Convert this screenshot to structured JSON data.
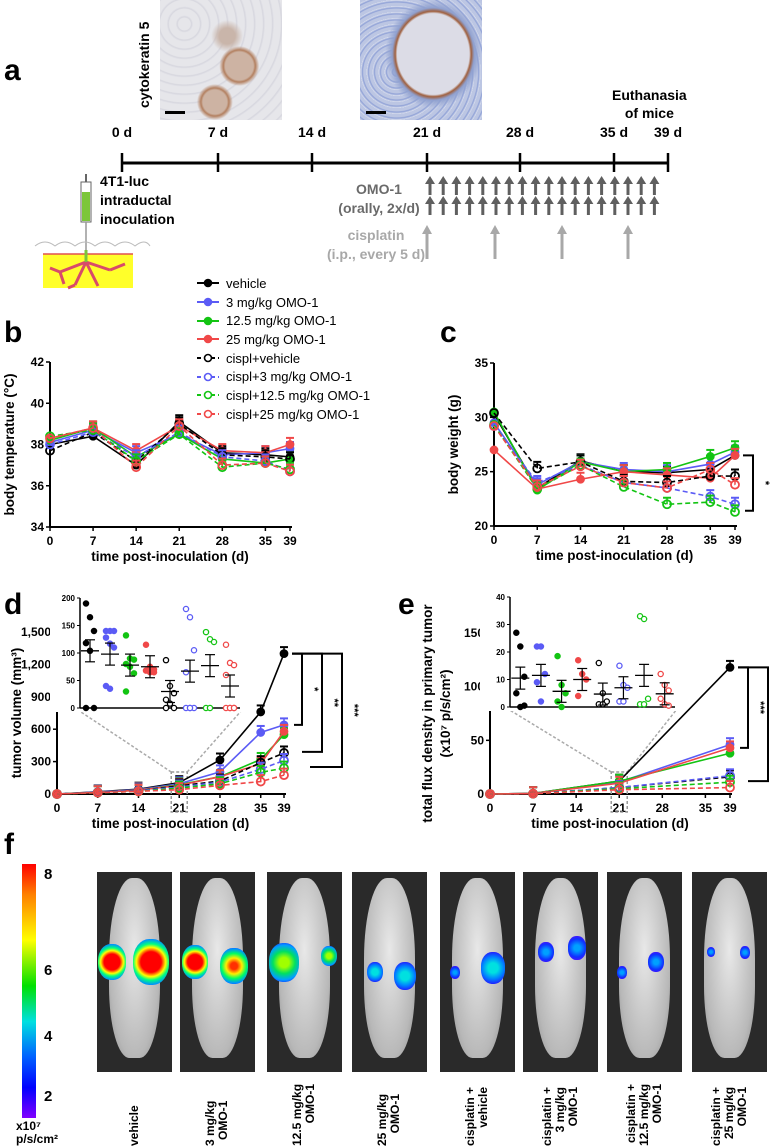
{
  "panel_labels": [
    "a",
    "b",
    "c",
    "d",
    "e",
    "f"
  ],
  "timeline": {
    "histology_label": "cytokeratin 5",
    "days": [
      "0 d",
      "7 d",
      "14 d",
      "21 d",
      "28 d",
      "35 d",
      "39 d"
    ],
    "euthanasia": [
      "Euthanasia",
      "of mice"
    ],
    "inoculation": [
      "4T1-luc",
      "intraductal",
      "inoculation"
    ],
    "omo": [
      "OMO-1",
      "(orally, 2x/d)"
    ],
    "cisplatin": [
      "cisplatin",
      "(i.p., every 5 d)"
    ]
  },
  "colors": {
    "vehicle": "#000000",
    "blue": "#5b5bf5",
    "green": "#13c413",
    "red": "#f04848",
    "omo_arrow": "#5f5f5f",
    "cis_arrow": "#a8a8a8",
    "gland": "#ffff2a"
  },
  "legend": [
    "vehicle",
    "3 mg/kg OMO-1",
    "12.5 mg/kg OMO-1",
    "25 mg/kg OMO-1",
    "cispl+vehicle",
    "cispl+3 mg/kg OMO-1",
    "cispl+12.5 mg/kg OMO-1",
    "cispl+25 mg/kg OMO-1"
  ],
  "chart_data": [
    {
      "id": "b",
      "type": "line",
      "ylabel": "body temperature (°C)",
      "xlabel": "time post-inoculation (d)",
      "x": [
        0,
        7,
        14,
        21,
        28,
        35,
        39
      ],
      "xticks": [
        "0",
        "7",
        "14",
        "21",
        "28",
        "35",
        "39"
      ],
      "ylim": [
        34,
        42
      ],
      "yticks": [
        "34",
        "36",
        "38",
        "40",
        "42"
      ],
      "series": [
        {
          "name": "vehicle",
          "values": [
            38.0,
            38.4,
            37.0,
            39.1,
            37.6,
            37.5,
            37.4
          ]
        },
        {
          "name": "3 mg/kg OMO-1",
          "values": [
            38.1,
            38.7,
            37.6,
            38.5,
            37.5,
            37.6,
            37.8
          ]
        },
        {
          "name": "12.5 mg/kg OMO-1",
          "values": [
            38.2,
            38.8,
            37.4,
            38.5,
            37.3,
            37.1,
            37.3
          ]
        },
        {
          "name": "25 mg/kg OMO-1",
          "values": [
            38.3,
            38.8,
            37.7,
            38.9,
            37.7,
            37.6,
            38.0
          ]
        },
        {
          "name": "cispl+vehicle",
          "values": [
            37.7,
            38.6,
            37.2,
            39.0,
            37.5,
            37.4,
            37.3
          ]
        },
        {
          "name": "cispl+3 mg/kg OMO-1",
          "values": [
            38.0,
            38.6,
            37.4,
            38.6,
            37.4,
            37.2,
            36.7
          ]
        },
        {
          "name": "cispl+12.5 mg/kg OMO-1",
          "values": [
            38.4,
            38.7,
            37.2,
            38.5,
            36.9,
            37.1,
            36.8
          ]
        },
        {
          "name": "cispl+25 mg/kg OMO-1",
          "values": [
            38.3,
            38.8,
            36.9,
            38.9,
            37.0,
            37.1,
            36.7
          ]
        }
      ]
    },
    {
      "id": "c",
      "type": "line",
      "ylabel": "body weight (g)",
      "xlabel": "time post-inoculation (d)",
      "x": [
        0,
        7,
        14,
        21,
        28,
        35,
        39
      ],
      "xticks": [
        "0",
        "7",
        "14",
        "21",
        "28",
        "35",
        "39"
      ],
      "ylim": [
        20,
        35
      ],
      "yticks": [
        "20",
        "25",
        "30",
        "35"
      ],
      "significance": [
        "*"
      ],
      "series": [
        {
          "name": "vehicle",
          "values": [
            30.3,
            23.5,
            26.0,
            25.0,
            24.9,
            25.2,
            26.5
          ]
        },
        {
          "name": "3 mg/kg OMO-1",
          "values": [
            29.5,
            23.8,
            25.9,
            25.2,
            25.0,
            25.7,
            26.8
          ]
        },
        {
          "name": "12.5 mg/kg OMO-1",
          "values": [
            30.5,
            23.3,
            25.9,
            25.0,
            25.2,
            26.4,
            27.2
          ]
        },
        {
          "name": "25 mg/kg OMO-1",
          "values": [
            27.0,
            23.4,
            24.3,
            25.0,
            24.7,
            24.4,
            26.5
          ]
        },
        {
          "name": "cispl+vehicle",
          "values": [
            30.4,
            25.3,
            25.9,
            24.1,
            24.0,
            24.6,
            24.6
          ]
        },
        {
          "name": "cispl+3 mg/kg OMO-1",
          "values": [
            29.2,
            24.0,
            25.6,
            24.0,
            23.5,
            22.7,
            22.0
          ]
        },
        {
          "name": "cispl+12.5 mg/kg OMO-1",
          "values": [
            29.3,
            23.4,
            25.6,
            23.6,
            22.0,
            22.2,
            21.3
          ]
        },
        {
          "name": "cispl+25 mg/kg OMO-1",
          "values": [
            29.2,
            23.6,
            25.5,
            24.0,
            23.5,
            25.2,
            23.8
          ]
        }
      ]
    },
    {
      "id": "d",
      "type": "line",
      "ylabel": "tumor volume (mm³)",
      "xlabel": "time post-inoculation (d)",
      "x": [
        0,
        7,
        14,
        21,
        28,
        35,
        39
      ],
      "xticks": [
        "0",
        "7",
        "14",
        "21",
        "28",
        "35",
        "39"
      ],
      "ylim": [
        0,
        1500
      ],
      "yticks": [
        "0",
        "300",
        "600",
        "900",
        "1,200",
        "1,500"
      ],
      "significance": [
        "*",
        "**",
        "***"
      ],
      "series": [
        {
          "name": "vehicle",
          "values": [
            0,
            20,
            45,
            105,
            315,
            760,
            1300
          ]
        },
        {
          "name": "3 mg/kg OMO-1",
          "values": [
            0,
            18,
            40,
            95,
            205,
            570,
            640
          ]
        },
        {
          "name": "12.5 mg/kg OMO-1",
          "values": [
            0,
            15,
            35,
            85,
            160,
            320,
            550
          ]
        },
        {
          "name": "25 mg/kg OMO-1",
          "values": [
            0,
            15,
            35,
            80,
            160,
            280,
            580
          ]
        },
        {
          "name": "cispl+vehicle",
          "values": [
            0,
            15,
            30,
            75,
            120,
            290,
            380
          ]
        },
        {
          "name": "cispl+3 mg/kg OMO-1",
          "values": [
            0,
            15,
            30,
            65,
            110,
            230,
            310
          ]
        },
        {
          "name": "cispl+12.5 mg/kg OMO-1",
          "values": [
            0,
            12,
            25,
            55,
            95,
            200,
            240
          ]
        },
        {
          "name": "cispl+25 mg/kg OMO-1",
          "values": [
            0,
            12,
            25,
            40,
            80,
            115,
            175
          ]
        }
      ],
      "inset": {
        "type": "scatter",
        "day": 21,
        "ylim": [
          0,
          200
        ],
        "yticks": [
          "0",
          "50",
          "100",
          "150",
          "200"
        ],
        "groups": [
          [
            190,
            165,
            140,
            118,
            104,
            0,
            0
          ],
          [
            140,
            140,
            140,
            128,
            117,
            110,
            40,
            35
          ],
          [
            132,
            90,
            88,
            80,
            75,
            63,
            30
          ],
          [
            115,
            75,
            70,
            68,
            65,
            65
          ],
          [
            87,
            40,
            27,
            15,
            8,
            0,
            0
          ],
          [
            180,
            165,
            105,
            65,
            0,
            0,
            0,
            0
          ],
          [
            138,
            125,
            120,
            0,
            0
          ],
          [
            115,
            82,
            78,
            60,
            0,
            0,
            0,
            0,
            0
          ]
        ],
        "means": [
          104,
          98,
          78,
          75,
          30,
          67,
          77,
          40
        ]
      }
    },
    {
      "id": "e",
      "type": "line",
      "ylabel": [
        "total flux density in primary tumor",
        "(x10⁷ p/s/cm²)"
      ],
      "xlabel": "time post-inoculation (d)",
      "x": [
        0,
        7,
        21,
        39
      ],
      "xticks": [
        "0",
        "7",
        "14",
        "21",
        "28",
        "35",
        "39"
      ],
      "ylim": [
        0,
        150
      ],
      "yticks": [
        "0",
        "50",
        "100",
        "150"
      ],
      "significance": [
        "***",
        "***"
      ],
      "series": [
        {
          "name": "vehicle",
          "values": [
            0,
            0.5,
            12,
            118
          ]
        },
        {
          "name": "3 mg/kg OMO-1",
          "values": [
            0,
            0.5,
            11,
            46
          ]
        },
        {
          "name": "12.5 mg/kg OMO-1",
          "values": [
            0,
            0.5,
            12,
            38
          ]
        },
        {
          "name": "25 mg/kg OMO-1",
          "values": [
            0,
            0.5,
            10,
            43
          ]
        },
        {
          "name": "cispl+vehicle",
          "values": [
            0,
            0.3,
            6,
            16
          ]
        },
        {
          "name": "cispl+3 mg/kg OMO-1",
          "values": [
            0,
            0.3,
            6,
            17
          ]
        },
        {
          "name": "cispl+12.5 mg/kg OMO-1",
          "values": [
            0,
            0.3,
            5,
            11
          ]
        },
        {
          "name": "cispl+25 mg/kg OMO-1",
          "values": [
            0,
            0.3,
            4,
            6
          ]
        }
      ],
      "inset": {
        "type": "scatter",
        "day": 21,
        "ylim": [
          0,
          40
        ],
        "yticks": [
          "0",
          "10",
          "20",
          "30",
          "40"
        ],
        "groups": [
          [
            27,
            22,
            11,
            5,
            0,
            0.5
          ],
          [
            22,
            22,
            12,
            9,
            2
          ],
          [
            18.5,
            8,
            5,
            2,
            0
          ],
          [
            17,
            12,
            10,
            4
          ],
          [
            16,
            5,
            2,
            1,
            1
          ],
          [
            15,
            8,
            7,
            2,
            2
          ],
          [
            33,
            32,
            3,
            1,
            1
          ],
          [
            12,
            8,
            6,
            3,
            1,
            0.5
          ]
        ],
        "means": [
          10.5,
          11.5,
          5.7,
          10,
          4.7,
          7,
          11.5,
          4.8
        ]
      }
    }
  ],
  "imaging": {
    "colorbar_ticks": [
      "8",
      "6",
      "4",
      "2"
    ],
    "colorbar_unit": [
      "x10⁷",
      "p/s/cm²"
    ],
    "mice": [
      {
        "label": [
          "vehicle"
        ]
      },
      {
        "label": [
          "3 mg/kg",
          "OMO-1"
        ]
      },
      {
        "label": [
          "12.5 mg/kg",
          "OMO-1"
        ]
      },
      {
        "label": [
          "25 mg/kg",
          "OMO-1"
        ]
      },
      {
        "label": [
          "cisplatin +",
          "vehicle"
        ]
      },
      {
        "label": [
          "cisplatin +",
          "3 mg/kg",
          "OMO-1"
        ]
      },
      {
        "label": [
          "cisplatin +",
          "12.5 mg/kg",
          "OMO-1"
        ]
      },
      {
        "label": [
          "cisplatin +",
          "25 mg/kg",
          "OMO-1"
        ]
      }
    ]
  }
}
